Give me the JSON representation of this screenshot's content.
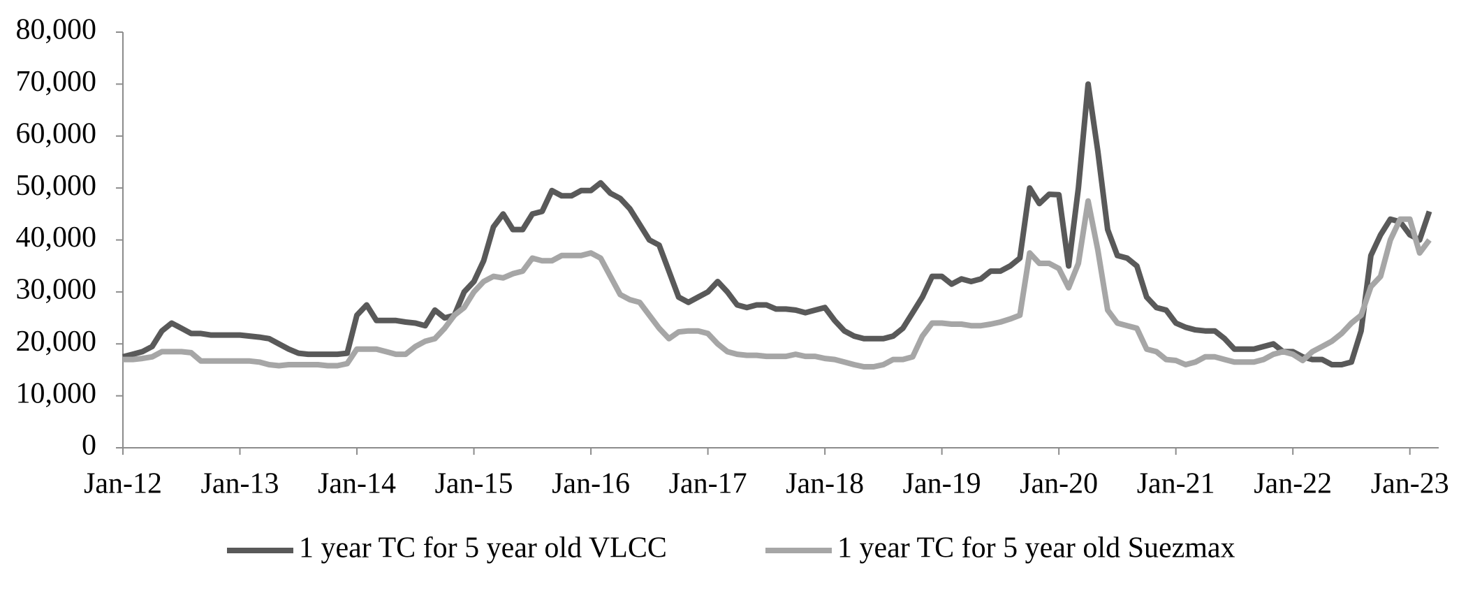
{
  "chart_data": {
    "type": "line",
    "categories": [
      "Jan-12",
      null,
      null,
      null,
      null,
      null,
      null,
      null,
      null,
      null,
      null,
      null,
      "Jan-13",
      null,
      null,
      null,
      null,
      null,
      null,
      null,
      null,
      null,
      null,
      null,
      "Jan-14",
      null,
      null,
      null,
      null,
      null,
      null,
      null,
      null,
      null,
      null,
      null,
      "Jan-15",
      null,
      null,
      null,
      null,
      null,
      null,
      null,
      null,
      null,
      null,
      null,
      "Jan-16",
      null,
      null,
      null,
      null,
      null,
      null,
      null,
      null,
      null,
      null,
      null,
      "Jan-17",
      null,
      null,
      null,
      null,
      null,
      null,
      null,
      null,
      null,
      null,
      null,
      "Jan-18",
      null,
      null,
      null,
      null,
      null,
      null,
      null,
      null,
      null,
      null,
      null,
      "Jan-19",
      null,
      null,
      null,
      null,
      null,
      null,
      null,
      null,
      null,
      null,
      null,
      "Jan-20",
      null,
      null,
      null,
      null,
      null,
      null,
      null,
      null,
      null,
      null,
      null,
      "Jan-21",
      null,
      null,
      null,
      null,
      null,
      null,
      null,
      null,
      null,
      null,
      null,
      "Jan-22",
      null,
      null,
      null,
      null,
      null,
      null,
      null,
      null,
      null,
      null,
      null,
      "Jan-23",
      null,
      null
    ],
    "series": [
      {
        "name": "1 year TC for 5 year old VLCC",
        "color": "#595959",
        "values": [
          17500,
          18000,
          18500,
          19500,
          22500,
          24000,
          23000,
          22000,
          22000,
          21700,
          21700,
          21700,
          21700,
          21500,
          21300,
          21000,
          20000,
          19000,
          18200,
          18000,
          18000,
          18000,
          18000,
          18200,
          25500,
          27500,
          24500,
          24500,
          24500,
          24200,
          24000,
          23500,
          26500,
          25000,
          25500,
          30000,
          32000,
          36000,
          42500,
          45000,
          42000,
          42000,
          45000,
          45500,
          49500,
          48500,
          48500,
          49500,
          49500,
          51000,
          49000,
          48000,
          46000,
          43000,
          40000,
          39000,
          34000,
          29000,
          28000,
          29000,
          30000,
          32000,
          30000,
          27500,
          27000,
          27500,
          27500,
          26700,
          26700,
          26500,
          26000,
          26500,
          27000,
          24500,
          22500,
          21500,
          21000,
          21000,
          21000,
          21500,
          23000,
          26000,
          29000,
          33000,
          33000,
          31500,
          32500,
          32000,
          32500,
          34000,
          34000,
          35000,
          36500,
          50000,
          47000,
          48800,
          48700,
          35000,
          50000,
          70000,
          57000,
          42000,
          37000,
          36500,
          35000,
          29000,
          27000,
          26500,
          24000,
          23200,
          22700,
          22500,
          22500,
          21000,
          19000,
          19000,
          19000,
          19500,
          20000,
          18500,
          18500,
          17500,
          17000,
          17000,
          16000,
          16000,
          16500,
          22500,
          37000,
          41000,
          44000,
          43500,
          41000,
          40000,
          45500
        ]
      },
      {
        "name": "1 year TC for 5 year old Suezmax",
        "color": "#a6a6a6",
        "values": [
          17000,
          17000,
          17200,
          17500,
          18500,
          18500,
          18500,
          18300,
          16700,
          16700,
          16700,
          16700,
          16700,
          16700,
          16500,
          16000,
          15800,
          16000,
          16000,
          16000,
          16000,
          15800,
          15800,
          16200,
          19000,
          19000,
          19000,
          18500,
          18000,
          18000,
          19500,
          20500,
          21000,
          23000,
          25500,
          27000,
          30000,
          32000,
          33000,
          32700,
          33500,
          34000,
          36500,
          36000,
          36000,
          37000,
          37000,
          37000,
          37500,
          36500,
          33000,
          29500,
          28500,
          28000,
          25500,
          23000,
          21000,
          22300,
          22500,
          22500,
          22000,
          20000,
          18500,
          18000,
          17800,
          17800,
          17600,
          17600,
          17600,
          18000,
          17600,
          17600,
          17200,
          17000,
          16500,
          16000,
          15600,
          15600,
          16000,
          17000,
          17000,
          17500,
          21500,
          24000,
          24000,
          23800,
          23800,
          23500,
          23500,
          23800,
          24200,
          24800,
          25500,
          37500,
          35500,
          35500,
          34500,
          30800,
          35500,
          47500,
          38000,
          26500,
          24000,
          23500,
          23000,
          19000,
          18500,
          17000,
          16800,
          16000,
          16500,
          17500,
          17500,
          17000,
          16500,
          16500,
          16500,
          17000,
          18000,
          18500,
          18000,
          16800,
          18500,
          19500,
          20500,
          22000,
          24000,
          25500,
          31000,
          33000,
          40000,
          44000,
          44000,
          37500,
          40000
        ]
      }
    ],
    "ylim": [
      0,
      80000
    ],
    "yticks": [
      0,
      {
        "value": 10000,
        "label": "10,000"
      },
      {
        "value": 20000,
        "label": "20,000"
      },
      {
        "value": 30000,
        "label": "30,000"
      },
      {
        "value": 40000,
        "label": "40,000"
      },
      {
        "value": 50000,
        "label": "50,000"
      },
      {
        "value": 60000,
        "label": "60,000"
      },
      {
        "value": 70000,
        "label": "70,000"
      },
      {
        "value": 80000,
        "label": "80,000"
      }
    ],
    "grid": false,
    "legend": "bottom"
  }
}
